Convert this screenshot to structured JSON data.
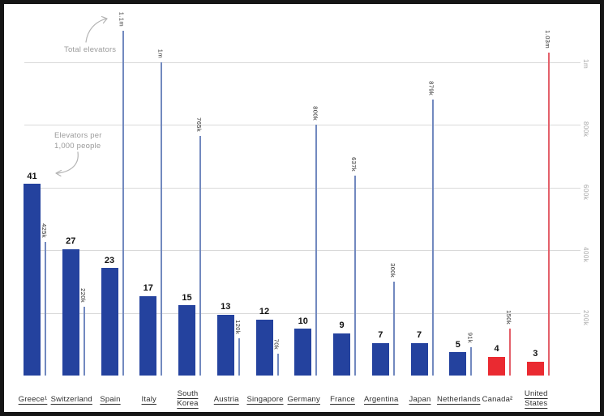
{
  "annotations": {
    "total_elevators": "Total elevators",
    "per_capita_line1": "Elevators per",
    "per_capita_line2": "1,000 people"
  },
  "chart_data": {
    "type": "bar",
    "title": "",
    "grid": true,
    "legend_position": "annotated-arrows-top-left",
    "categories": [
      "Greece¹",
      "Switzerland",
      "Spain",
      "Italy",
      "South Korea",
      "Austria",
      "Singapore",
      "Germany",
      "France",
      "Argentina",
      "Japan",
      "Netherlands",
      "Canada²",
      "United States"
    ],
    "series": [
      {
        "name": "Elevators per 1,000 people",
        "values": [
          41,
          27,
          23,
          17,
          15,
          13,
          12,
          10,
          9,
          7,
          7,
          5,
          4,
          3
        ]
      },
      {
        "name": "Total elevators",
        "labels": [
          "425k",
          "220k",
          "1.1m",
          "1m",
          "765k",
          "120k",
          "70k",
          "800k",
          "637k",
          "300k",
          "879k",
          "91k",
          "150k",
          "1.03m"
        ],
        "values_thousands": [
          425,
          220,
          1100,
          1000,
          765,
          120,
          70,
          800,
          637,
          300,
          879,
          91,
          150,
          1030
        ]
      }
    ],
    "countries": [
      {
        "label": "Greece¹",
        "lines": [
          "Greece¹"
        ],
        "underline": true,
        "per_1000": 41,
        "total_label": "425k",
        "total_thousands": 425,
        "highlight": false
      },
      {
        "label": "Switzerland",
        "lines": [
          "Switzerland"
        ],
        "underline": true,
        "per_1000": 27,
        "total_label": "220k",
        "total_thousands": 220,
        "highlight": false
      },
      {
        "label": "Spain",
        "lines": [
          "Spain"
        ],
        "underline": true,
        "per_1000": 23,
        "total_label": "1.1m",
        "total_thousands": 1100,
        "highlight": false
      },
      {
        "label": "Italy",
        "lines": [
          "Italy"
        ],
        "underline": true,
        "per_1000": 17,
        "total_label": "1m",
        "total_thousands": 1000,
        "highlight": false
      },
      {
        "label": "South Korea",
        "lines": [
          "South",
          "Korea"
        ],
        "underline": true,
        "per_1000": 15,
        "total_label": "765k",
        "total_thousands": 765,
        "highlight": false
      },
      {
        "label": "Austria",
        "lines": [
          "Austria"
        ],
        "underline": true,
        "per_1000": 13,
        "total_label": "120k",
        "total_thousands": 120,
        "highlight": false
      },
      {
        "label": "Singapore",
        "lines": [
          "Singapore"
        ],
        "underline": true,
        "per_1000": 12,
        "total_label": "70k",
        "total_thousands": 70,
        "highlight": false
      },
      {
        "label": "Germany",
        "lines": [
          "Germany"
        ],
        "underline": true,
        "per_1000": 10,
        "total_label": "800k",
        "total_thousands": 800,
        "highlight": false
      },
      {
        "label": "France",
        "lines": [
          "France"
        ],
        "underline": true,
        "per_1000": 9,
        "total_label": "637k",
        "total_thousands": 637,
        "highlight": false
      },
      {
        "label": "Argentina",
        "lines": [
          "Argentina"
        ],
        "underline": true,
        "per_1000": 7,
        "total_label": "300k",
        "total_thousands": 300,
        "highlight": false
      },
      {
        "label": "Japan",
        "lines": [
          "Japan"
        ],
        "underline": true,
        "per_1000": 7,
        "total_label": "879k",
        "total_thousands": 879,
        "highlight": false
      },
      {
        "label": "Netherlands",
        "lines": [
          "Netherlands"
        ],
        "underline": true,
        "per_1000": 5,
        "total_label": "91k",
        "total_thousands": 91,
        "highlight": false
      },
      {
        "label": "Canada²",
        "lines": [
          "Canada²"
        ],
        "underline": false,
        "per_1000": 4,
        "total_label": "150k",
        "total_thousands": 150,
        "highlight": true
      },
      {
        "label": "United States",
        "lines": [
          "United",
          "States"
        ],
        "underline": true,
        "per_1000": 3,
        "total_label": "1.03m",
        "total_thousands": 1030,
        "highlight": true
      }
    ],
    "right_axis_ticks": [
      {
        "label": "1m",
        "thousands": 1000
      },
      {
        "label": "800k",
        "thousands": 800
      },
      {
        "label": "600k",
        "thousands": 600
      },
      {
        "label": "400k",
        "thousands": 400
      },
      {
        "label": "200k",
        "thousands": 200
      }
    ],
    "colors": {
      "bar_blue": "#24429e",
      "bar_red": "#ea2a31",
      "line_blue": "#7289bf",
      "line_red": "#e4606a",
      "gridline": "#d9d9d9",
      "annotation_text": "#9b9b9b",
      "arrow": "#b3b3b3",
      "axis_tick_text": "#a6a6a6"
    }
  }
}
